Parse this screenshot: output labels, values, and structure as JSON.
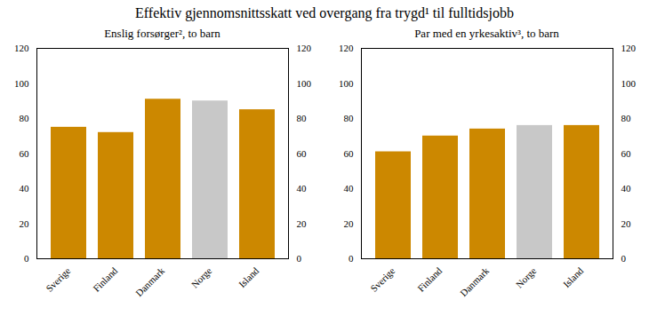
{
  "title": "Effektiv gjennomsnittsskatt ved overgang fra trygd¹ til fulltidsjobb",
  "chart_data": [
    {
      "type": "bar",
      "subtitle": "Enslig forsørger², to barn",
      "categories": [
        "Sverige",
        "Finland",
        "Danmark",
        "Norge",
        "Island"
      ],
      "values": [
        75,
        72,
        91,
        90,
        85
      ],
      "colors": [
        "#CC8800",
        "#CC8800",
        "#CC8800",
        "#C8C8C8",
        "#CC8800"
      ],
      "ylim": [
        0,
        120
      ],
      "yticks": [
        0,
        20,
        40,
        60,
        80,
        100,
        120
      ],
      "y2lim": [
        0,
        120
      ],
      "y2ticks": [
        0,
        20,
        40,
        60,
        80,
        100,
        120
      ],
      "grid": false
    },
    {
      "type": "bar",
      "subtitle": "Par med en yrkesaktiv³, to barn",
      "categories": [
        "Sverige",
        "Finland",
        "Danmark",
        "Norge",
        "Island"
      ],
      "values": [
        61,
        70,
        74,
        76,
        76
      ],
      "colors": [
        "#CC8800",
        "#CC8800",
        "#CC8800",
        "#C8C8C8",
        "#CC8800"
      ],
      "ylim": [
        0,
        120
      ],
      "yticks": [
        0,
        20,
        40,
        60,
        80,
        100,
        120
      ],
      "y2lim": [
        0,
        120
      ],
      "y2ticks": [
        0,
        20,
        40,
        60,
        80,
        100,
        120
      ],
      "grid": false
    }
  ]
}
